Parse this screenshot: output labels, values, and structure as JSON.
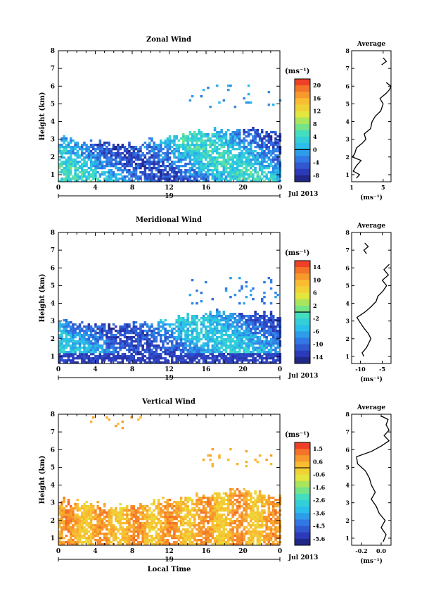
{
  "chart_data": [
    {
      "type": "heatmap",
      "title": "Zonal Wind",
      "xlabel": "",
      "ylabel": "Height (km)",
      "unit": "(ms⁻¹)",
      "date_label": "Jul 2013",
      "day": "19",
      "x_ticks": [
        "0",
        "4",
        "8",
        "12",
        "16",
        "20",
        "0"
      ],
      "y_ticks": [
        "1",
        "2",
        "3",
        "4",
        "5",
        "6",
        "7",
        "8"
      ],
      "ylim": [
        0.6,
        8.0
      ],
      "colorbar": {
        "ticks": [
          "20",
          "16",
          "12",
          "8",
          "4",
          "0",
          "-4",
          "-8"
        ],
        "range": [
          -10,
          22
        ],
        "zero_value": 0
      },
      "field": {
        "low_layer_top_km": 3.2,
        "low_layer_values_range": [
          -8,
          6
        ],
        "sparse_upper_points_km": [
          4.8,
          6.2
        ]
      },
      "average_profile": {
        "title": "Average",
        "xlabel": "(ms⁻¹)",
        "x_ticks": [
          "1",
          "5"
        ],
        "xlim": [
          1,
          6
        ],
        "height_km": [
          0.8,
          1.0,
          1.2,
          1.5,
          1.8,
          2.0,
          2.2,
          2.5,
          2.8,
          3.0,
          3.3,
          3.6,
          4.0,
          4.3,
          4.6,
          5.0,
          5.3,
          5.6,
          5.8,
          6.0,
          6.2
        ],
        "values": [
          1.6,
          2.0,
          1.2,
          1.6,
          2.2,
          1.1,
          1.4,
          1.6,
          2.4,
          2.8,
          2.6,
          3.4,
          3.6,
          4.0,
          4.7,
          5.0,
          4.6,
          5.4,
          5.8,
          6.0,
          5.4
        ],
        "upper_segment_height_km": [
          7.2,
          7.4,
          7.6
        ],
        "upper_segment_values": [
          4.8,
          5.4,
          5.0
        ]
      }
    },
    {
      "type": "heatmap",
      "title": "Meridional Wind",
      "xlabel": "",
      "ylabel": "Height (km)",
      "unit": "(ms⁻¹)",
      "date_label": "Jul 2013",
      "day": "19",
      "x_ticks": [
        "0",
        "4",
        "8",
        "12",
        "16",
        "20",
        "0"
      ],
      "y_ticks": [
        "1",
        "2",
        "3",
        "4",
        "5",
        "6",
        "7",
        "8"
      ],
      "ylim": [
        0.6,
        8.0
      ],
      "colorbar": {
        "ticks": [
          "14",
          "10",
          "6",
          "2",
          "-2",
          "-6",
          "-10",
          "-14"
        ],
        "range": [
          -16,
          16
        ],
        "zero_value": 0
      },
      "field": {
        "low_layer_top_km": 3.2,
        "low_layer_values_range": [
          -14,
          -2
        ],
        "sparse_upper_points_km": [
          4.0,
          5.5
        ]
      },
      "average_profile": {
        "title": "Average",
        "xlabel": "(ms⁻¹)",
        "x_ticks": [
          "-10",
          "-5"
        ],
        "xlim": [
          -12,
          -3
        ],
        "height_km": [
          1.0,
          1.2,
          1.5,
          1.8,
          2.0,
          2.3,
          2.6,
          2.9,
          3.2,
          3.5,
          3.8,
          4.1,
          4.4,
          4.7,
          5.0,
          5.3,
          5.6,
          5.9,
          6.2
        ],
        "values": [
          -9.2,
          -9.6,
          -8.6,
          -8.0,
          -7.6,
          -8.2,
          -9.2,
          -10.0,
          -10.8,
          -9.0,
          -7.6,
          -6.4,
          -6.0,
          -4.8,
          -4.0,
          -5.0,
          -3.6,
          -4.6,
          -3.4
        ],
        "upper_segment_height_km": [
          6.8,
          7.0,
          7.2,
          7.4
        ],
        "upper_segment_values": [
          -8.6,
          -9.2,
          -8.2,
          -9.0
        ]
      }
    },
    {
      "type": "heatmap",
      "title": "Vertical Wind",
      "xlabel": "Local Time",
      "ylabel": "Height (km)",
      "unit": "(ms⁻¹)",
      "date_label": "Jul 2013",
      "day": "19",
      "x_ticks": [
        "0",
        "4",
        "8",
        "12",
        "16",
        "20",
        "0"
      ],
      "y_ticks": [
        "1",
        "2",
        "3",
        "4",
        "5",
        "6",
        "7",
        "8"
      ],
      "ylim": [
        0.6,
        8.0
      ],
      "colorbar": {
        "ticks": [
          "1.5",
          "0.6",
          "-0.6",
          "-1.6",
          "-2.6",
          "-3.6",
          "-4.5",
          "-5.6"
        ],
        "range": [
          -6.1,
          2.0
        ],
        "zero_value": 0
      },
      "field": {
        "low_layer_top_km": 3.3,
        "low_layer_values_range": [
          -0.6,
          1.5
        ],
        "sparse_upper_points_km": [
          5.0,
          8.0
        ]
      },
      "average_profile": {
        "title": "Average",
        "xlabel": "(ms⁻¹)",
        "x_ticks": [
          "-0.2",
          "0.0"
        ],
        "xlim": [
          -0.3,
          0.1
        ],
        "height_km": [
          0.8,
          1.2,
          1.6,
          2.0,
          2.4,
          2.8,
          3.2,
          3.6,
          4.0,
          4.4,
          4.8,
          5.2,
          5.6,
          5.9,
          6.2,
          6.5,
          6.8,
          7.1,
          7.4,
          7.7,
          7.9
        ],
        "values": [
          0.02,
          0.05,
          0.0,
          0.04,
          -0.02,
          -0.05,
          -0.1,
          -0.06,
          -0.1,
          -0.12,
          -0.16,
          -0.24,
          -0.25,
          -0.1,
          0.0,
          0.08,
          0.03,
          0.08,
          0.05,
          0.07,
          0.0
        ]
      }
    }
  ]
}
